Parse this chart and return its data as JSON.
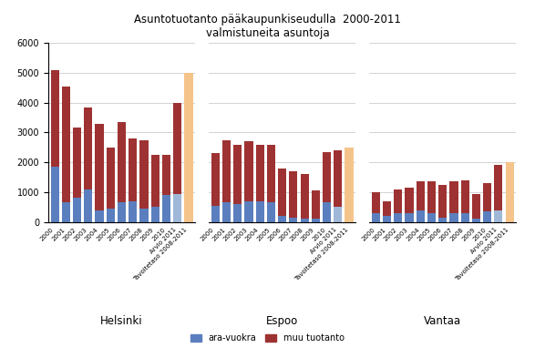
{
  "title_line1": "Asuntotuotanto pääkaupunkiseudulla  2000-2011",
  "title_line2": "valmistuneita asuntoja",
  "years_regular": [
    "2000",
    "2001",
    "2002",
    "2003",
    "2004",
    "2005",
    "2006",
    "2007",
    "2008",
    "2009",
    "2010"
  ],
  "year_arvio": "Arvio 2011",
  "year_tavoite": "Tavoitetaso 2008-2011",
  "helsinki": {
    "ara": [
      1850,
      650,
      800,
      1100,
      400,
      450,
      650,
      700,
      450,
      500,
      900,
      950,
      1000
    ],
    "muu": [
      3250,
      3900,
      2350,
      2750,
      2900,
      2050,
      2700,
      2100,
      2300,
      1750,
      1350,
      3050,
      4000
    ],
    "tavoite_total": 5000
  },
  "espoo": {
    "ara": [
      550,
      650,
      600,
      700,
      700,
      650,
      200,
      150,
      100,
      100,
      650,
      500,
      500
    ],
    "muu": [
      1750,
      2100,
      2000,
      2000,
      1900,
      1950,
      1600,
      1550,
      1500,
      950,
      1700,
      1900,
      2000
    ],
    "tavoite_total": 2500
  },
  "vantaa": {
    "ara": [
      300,
      200,
      300,
      300,
      400,
      300,
      150,
      300,
      300,
      100,
      350,
      400,
      400
    ],
    "muu": [
      700,
      500,
      800,
      850,
      950,
      1050,
      1100,
      1050,
      1100,
      850,
      950,
      1500,
      1600
    ],
    "tavoite_total": 2000
  },
  "color_ara": "#5b7fbe",
  "color_muu": "#9e3232",
  "color_target": "#f5c48a",
  "color_arvio_ara": "#a0b8d8",
  "ylim": [
    0,
    6000
  ],
  "yticks": [
    0,
    1000,
    2000,
    3000,
    4000,
    5000,
    6000
  ],
  "legend_ara": "ara-vuokra",
  "legend_muu": "muu tuotanto",
  "bar_width": 0.75,
  "city_labels": [
    "Helsinki",
    "Espoo",
    "Vantaa"
  ]
}
